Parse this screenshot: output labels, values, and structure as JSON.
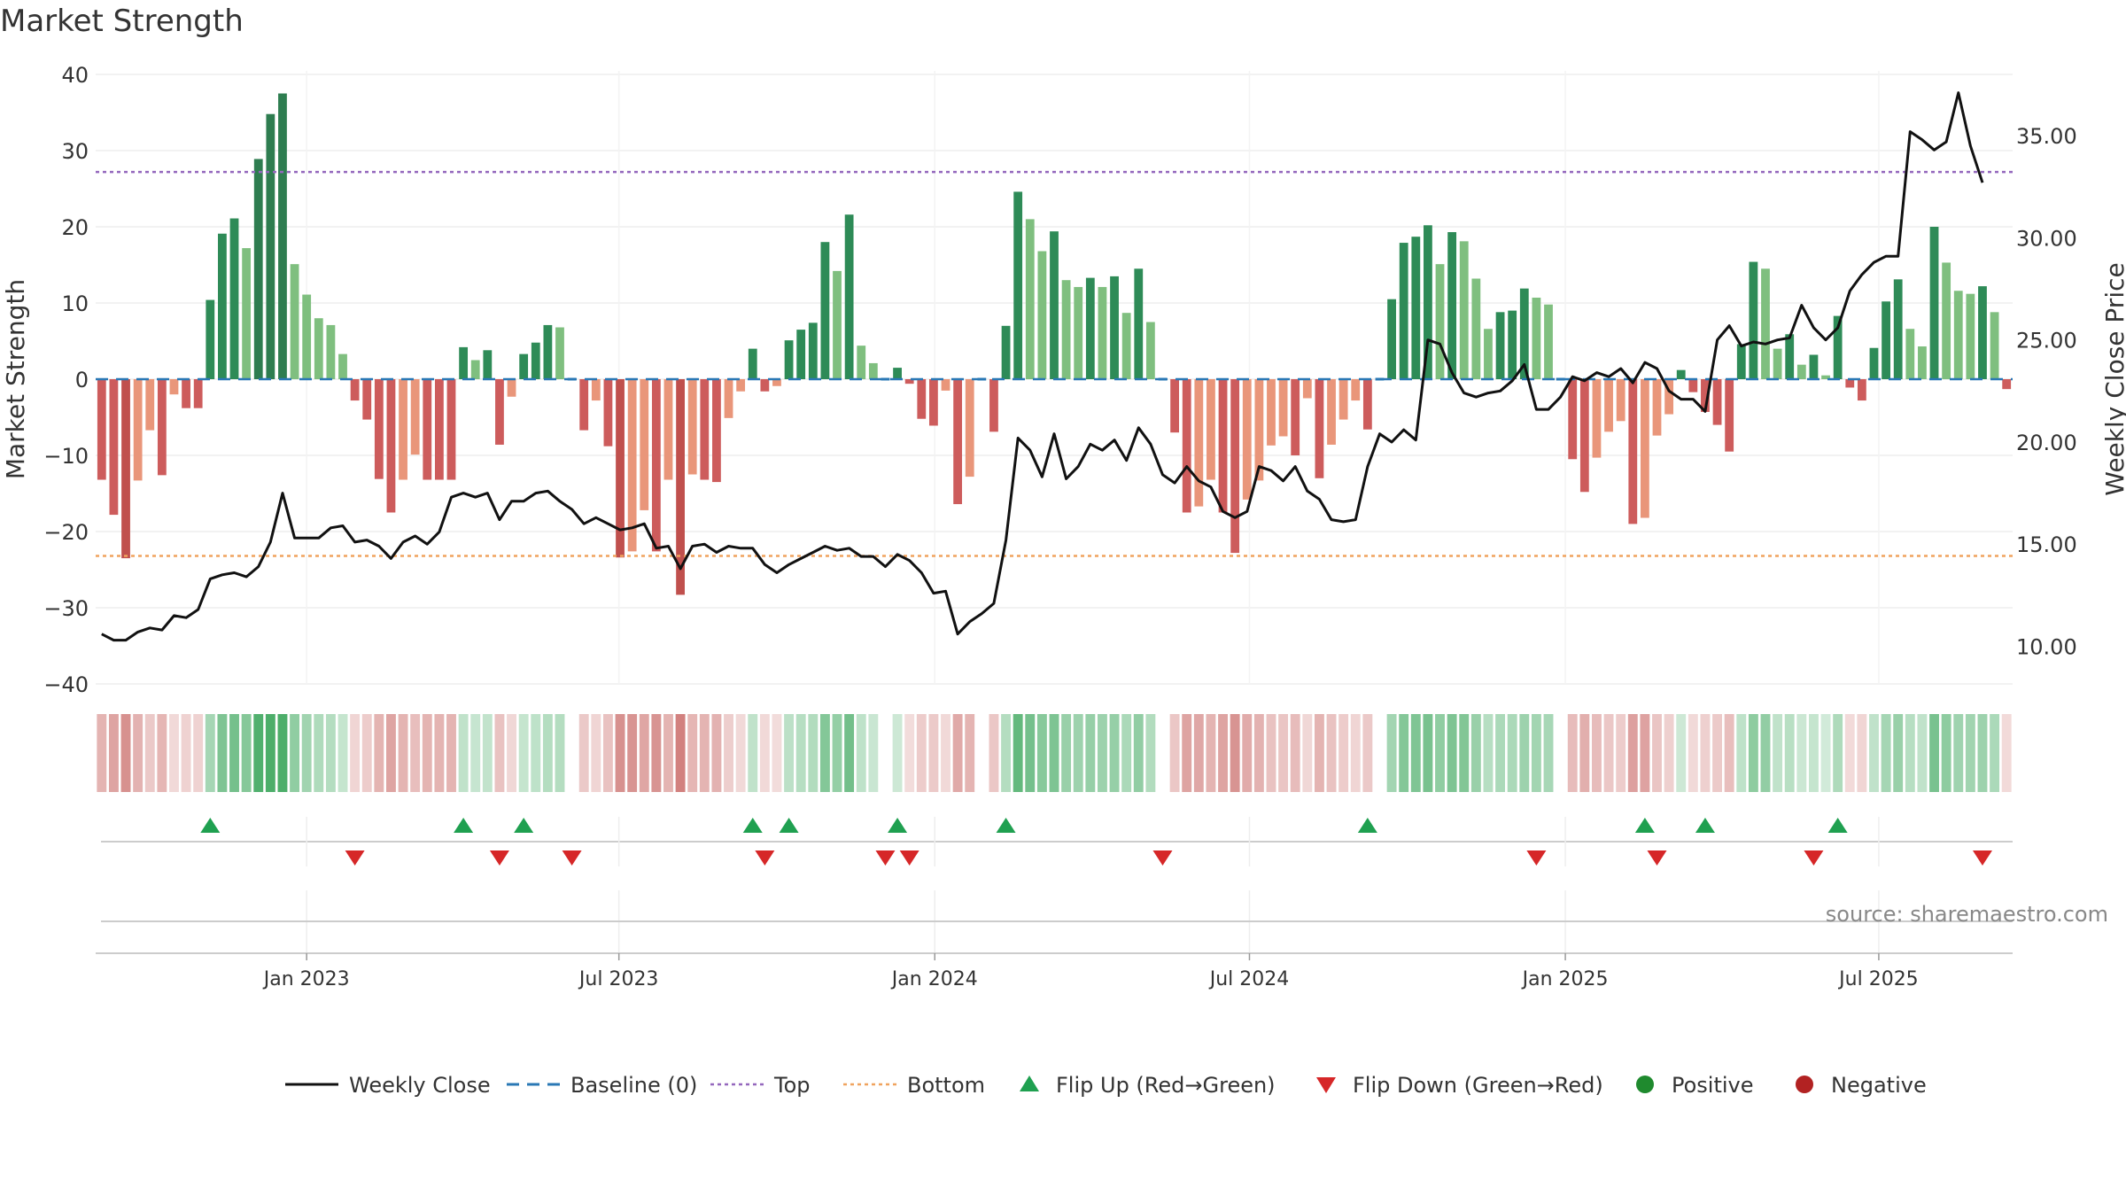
{
  "chart_data": {
    "type": "bar",
    "title": "Market Strength",
    "ylabel": "Market Strength",
    "ylabel_right": "Weekly Close Price",
    "ylim": [
      -40,
      40
    ],
    "y2lim": [
      8.2,
      38.0
    ],
    "y_ticks": [
      "40",
      "30",
      "20",
      "10",
      "0",
      "−10",
      "−20",
      "−30",
      "−40"
    ],
    "y_tick_values": [
      40,
      30,
      20,
      10,
      0,
      -10,
      -20,
      -30,
      -40
    ],
    "y2_ticks": [
      "35.00",
      "30.00",
      "25.00",
      "20.00",
      "15.00",
      "10.00"
    ],
    "y2_tick_values": [
      35,
      30,
      25,
      20,
      15,
      10
    ],
    "x_ticks": [
      "Jan 2023",
      "Jul 2023",
      "Jan 2024",
      "Jul 2024",
      "Jan 2025",
      "Jul 2025"
    ],
    "x_tick_weeks": [
      17.5,
      43.4,
      69.6,
      95.7,
      121.9,
      147.9
    ],
    "top_line": 27.2,
    "bottom_line": -23.2,
    "baseline": 0,
    "grid": true,
    "source": "source: sharemaestro.com",
    "legend": [
      {
        "label": "Weekly Close",
        "kind": "line",
        "color": "#111111"
      },
      {
        "label": "Baseline (0)",
        "kind": "dash",
        "color": "#2a78b5"
      },
      {
        "label": "Top",
        "kind": "dot",
        "color": "#9467bd"
      },
      {
        "label": "Bottom",
        "kind": "dot",
        "color": "#f0a35e"
      },
      {
        "label": "Flip Up (Red→Green)",
        "kind": "up",
        "color": "#1fa050"
      },
      {
        "label": "Flip Down (Green→Red)",
        "kind": "down",
        "color": "#d62728"
      },
      {
        "label": "Positive",
        "kind": "circle",
        "color": "#1f8a2e"
      },
      {
        "label": "Negative",
        "kind": "circle",
        "color": "#b22222"
      }
    ],
    "strength": [
      -13.2,
      -17.8,
      -23.5,
      -13.3,
      -6.7,
      -12.6,
      -2.0,
      -3.8,
      -3.8,
      10.4,
      19.1,
      21.1,
      17.2,
      28.9,
      34.8,
      37.5,
      15.1,
      11.1,
      8.0,
      7.1,
      3.3,
      -2.8,
      -5.3,
      -13.1,
      -17.5,
      -13.2,
      -9.9,
      -13.2,
      -13.2,
      -13.2,
      4.2,
      2.5,
      3.8,
      -8.6,
      -2.3,
      3.3,
      4.8,
      7.1,
      6.8,
      0.0,
      -6.7,
      -2.8,
      -8.8,
      -23.4,
      -22.6,
      -17.2,
      -22.6,
      -13.2,
      -28.3,
      -12.5,
      -13.2,
      -13.5,
      -5.1,
      -1.6,
      4.0,
      -1.6,
      -0.9,
      5.1,
      6.5,
      7.4,
      18.0,
      14.2,
      21.6,
      4.4,
      2.1,
      0.0,
      1.5,
      -0.6,
      -5.2,
      -6.1,
      -1.5,
      -16.4,
      -12.8,
      0.0,
      -6.9,
      7.0,
      24.6,
      21.0,
      16.8,
      19.4,
      13.0,
      12.1,
      13.3,
      12.1,
      13.5,
      8.7,
      14.5,
      7.5,
      0.0,
      -7.0,
      -17.5,
      -16.7,
      -13.2,
      -17.5,
      -22.8,
      -15.8,
      -13.3,
      -8.7,
      -7.5,
      -10.0,
      -2.5,
      -13.0,
      -8.6,
      -5.3,
      -2.8,
      -6.6,
      0.0,
      10.5,
      17.9,
      18.7,
      20.2,
      15.1,
      19.3,
      18.1,
      13.2,
      6.6,
      8.8,
      9.0,
      11.9,
      10.7,
      9.8,
      0.0,
      -10.5,
      -14.8,
      -10.3,
      -6.9,
      -5.5,
      -19.0,
      -18.2,
      -7.4,
      -4.6,
      1.2,
      -1.7,
      -4.3,
      -6.0,
      -9.5,
      4.6,
      15.4,
      14.5,
      4.0,
      5.9,
      1.9,
      3.2,
      0.5,
      8.3,
      -1.1,
      -2.8,
      4.1,
      10.2,
      13.1,
      6.6,
      4.3,
      20.0,
      15.3,
      11.6,
      11.2,
      12.2,
      8.8,
      -1.3
    ],
    "price": [
      10.6,
      10.3,
      10.3,
      10.7,
      10.9,
      10.8,
      11.5,
      11.4,
      11.8,
      13.3,
      13.5,
      13.6,
      13.4,
      13.9,
      15.1,
      17.5,
      15.3,
      15.3,
      15.3,
      15.8,
      15.9,
      15.1,
      15.2,
      14.9,
      14.3,
      15.1,
      15.4,
      15.0,
      15.6,
      17.3,
      17.5,
      17.3,
      17.5,
      16.2,
      17.1,
      17.1,
      17.5,
      17.6,
      17.1,
      16.7,
      16.0,
      16.3,
      16.0,
      15.7,
      15.8,
      16.0,
      14.8,
      14.9,
      13.8,
      14.9,
      15.0,
      14.6,
      14.9,
      14.8,
      14.8,
      14.0,
      13.6,
      14.0,
      14.3,
      14.6,
      14.9,
      14.7,
      14.8,
      14.4,
      14.4,
      13.9,
      14.5,
      14.2,
      13.6,
      12.6,
      12.7,
      10.6,
      11.2,
      11.6,
      12.1,
      15.2,
      20.2,
      19.6,
      18.3,
      20.4,
      18.2,
      18.8,
      19.9,
      19.6,
      20.1,
      19.1,
      20.7,
      19.9,
      18.4,
      18.0,
      18.8,
      18.1,
      17.8,
      16.6,
      16.3,
      16.6,
      18.8,
      18.6,
      18.1,
      18.8,
      17.6,
      17.2,
      16.2,
      16.1,
      16.2,
      18.8,
      20.4,
      20.0,
      20.6,
      20.1,
      25.0,
      24.8,
      23.4,
      22.4,
      22.2,
      22.4,
      22.5,
      23.0,
      23.8,
      21.6,
      21.6,
      22.2,
      23.2,
      23.0,
      23.4,
      23.2,
      23.6,
      22.9,
      23.9,
      23.6,
      22.5,
      22.1,
      22.1,
      21.5,
      25.0,
      25.7,
      24.7,
      24.9,
      24.8,
      25.0,
      25.1,
      26.7,
      25.6,
      25.0,
      25.6,
      27.4,
      28.2,
      28.8,
      29.1,
      29.1,
      35.2,
      34.8,
      34.3,
      34.7,
      37.1,
      34.5,
      32.7
    ],
    "flip_up_weeks": [
      9,
      30,
      35,
      54,
      57,
      66,
      75,
      105,
      128,
      133,
      144
    ],
    "flip_down_weeks": [
      21,
      33,
      39,
      55,
      65,
      67,
      88,
      119,
      129,
      142,
      156
    ]
  }
}
